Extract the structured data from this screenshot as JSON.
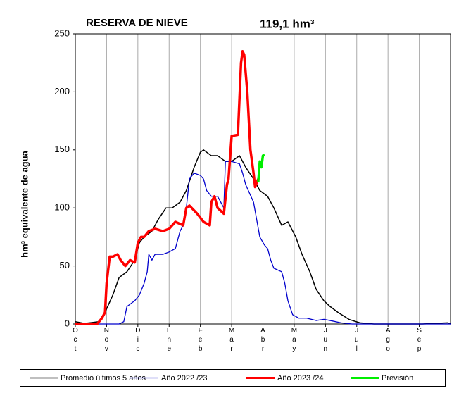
{
  "chart_data": {
    "type": "line",
    "title": "RESERVA DE NIEVE",
    "subtitle": "119,1 hm³",
    "y_label": "hm³ equivalente de agua",
    "legend": "bottom",
    "grid": "x",
    "xlim": [
      0,
      12
    ],
    "xticks": [
      {
        "value": 0,
        "label": "Oct"
      },
      {
        "value": 1,
        "label": "Nov"
      },
      {
        "value": 2,
        "label": "Dic"
      },
      {
        "value": 3,
        "label": "Ene"
      },
      {
        "value": 4,
        "label": "Feb"
      },
      {
        "value": 5,
        "label": "Mar"
      },
      {
        "value": 6,
        "label": "Abr"
      },
      {
        "value": 7,
        "label": "May"
      },
      {
        "value": 8,
        "label": "Jun"
      },
      {
        "value": 9,
        "label": "Jul"
      },
      {
        "value": 10,
        "label": "Ago"
      },
      {
        "value": 11,
        "label": "Sep"
      }
    ],
    "ylim": [
      0,
      250
    ],
    "yticks": [
      0,
      50,
      100,
      150,
      200,
      250
    ],
    "series": [
      {
        "name": "Promedio últimos 5 años",
        "color": "#000000",
        "width": 1.5,
        "x": [
          0,
          0.3,
          0.75,
          0.95,
          1.2,
          1.4,
          1.65,
          1.9,
          2.05,
          2.2,
          2.45,
          2.65,
          2.9,
          3.1,
          3.35,
          3.55,
          3.8,
          4.0,
          4.1,
          4.35,
          4.55,
          4.8,
          5.0,
          5.25,
          5.45,
          5.7,
          5.9,
          6.15,
          6.35,
          6.6,
          6.8,
          7.05,
          7.25,
          7.5,
          7.7,
          7.95,
          8.15,
          8.4,
          8.75,
          9.1,
          9.55,
          11.1,
          11.9,
          12
        ],
        "values": [
          2,
          0.5,
          2,
          10,
          25,
          40,
          45,
          55,
          70,
          75,
          80,
          90,
          100,
          100,
          105,
          115,
          135,
          148,
          150,
          145,
          145,
          140,
          140,
          145,
          135,
          125,
          115,
          110,
          100,
          85,
          88,
          75,
          60,
          45,
          30,
          20,
          15,
          10,
          4,
          1,
          0,
          0,
          1,
          0
        ]
      },
      {
        "name": "Año 2022 /23",
        "color": "#0000cc",
        "width": 1.3,
        "x": [
          0,
          1.4,
          1.55,
          1.65,
          1.9,
          2.05,
          2.2,
          2.3,
          2.35,
          2.45,
          2.55,
          2.8,
          3.0,
          3.2,
          3.35,
          3.45,
          3.55,
          3.65,
          3.8,
          4.0,
          4.1,
          4.2,
          4.35,
          4.55,
          4.75,
          4.8,
          5.0,
          5.25,
          5.35,
          5.45,
          5.7,
          5.8,
          5.9,
          6.05,
          6.15,
          6.25,
          6.35,
          6.6,
          6.7,
          6.8,
          6.95,
          7.15,
          7.4,
          7.7,
          7.95,
          8.15,
          8.5,
          8.85,
          12
        ],
        "values": [
          0,
          0,
          2,
          15,
          20,
          25,
          35,
          45,
          60,
          55,
          60,
          60,
          62,
          65,
          80,
          85,
          100,
          125,
          130,
          128,
          125,
          115,
          110,
          110,
          100,
          140,
          140,
          138,
          130,
          120,
          105,
          90,
          75,
          68,
          65,
          55,
          48,
          45,
          35,
          20,
          8,
          5,
          5,
          3,
          4,
          3,
          1,
          0,
          0
        ]
      },
      {
        "name": "Año 2023 /24",
        "color": "#ff0000",
        "width": 3.5,
        "x": [
          0,
          0.7,
          0.85,
          0.95,
          1.0,
          1.1,
          1.2,
          1.35,
          1.45,
          1.6,
          1.75,
          1.9,
          2.0,
          2.1,
          2.2,
          2.35,
          2.55,
          2.8,
          3.0,
          3.2,
          3.45,
          3.55,
          3.65,
          3.9,
          4.1,
          4.3,
          4.35,
          4.45,
          4.55,
          4.75,
          4.85,
          4.9,
          5.0,
          5.2,
          5.3,
          5.35,
          5.4,
          5.5,
          5.6,
          5.7,
          5.75,
          5.85
        ],
        "values": [
          0,
          0,
          5,
          10,
          35,
          58,
          58,
          60,
          55,
          50,
          55,
          53,
          70,
          75,
          75,
          80,
          82,
          80,
          82,
          88,
          85,
          100,
          102,
          95,
          88,
          85,
          105,
          110,
          100,
          95,
          120,
          125,
          162,
          163,
          225,
          235,
          232,
          200,
          150,
          130,
          118,
          125
        ]
      },
      {
        "name": "Previsión",
        "color": "#00ee00",
        "width": 3.5,
        "x": [
          5.85,
          5.9,
          5.95,
          6.0,
          6.05
        ],
        "values": [
          122,
          140,
          135,
          145,
          146
        ]
      }
    ]
  }
}
